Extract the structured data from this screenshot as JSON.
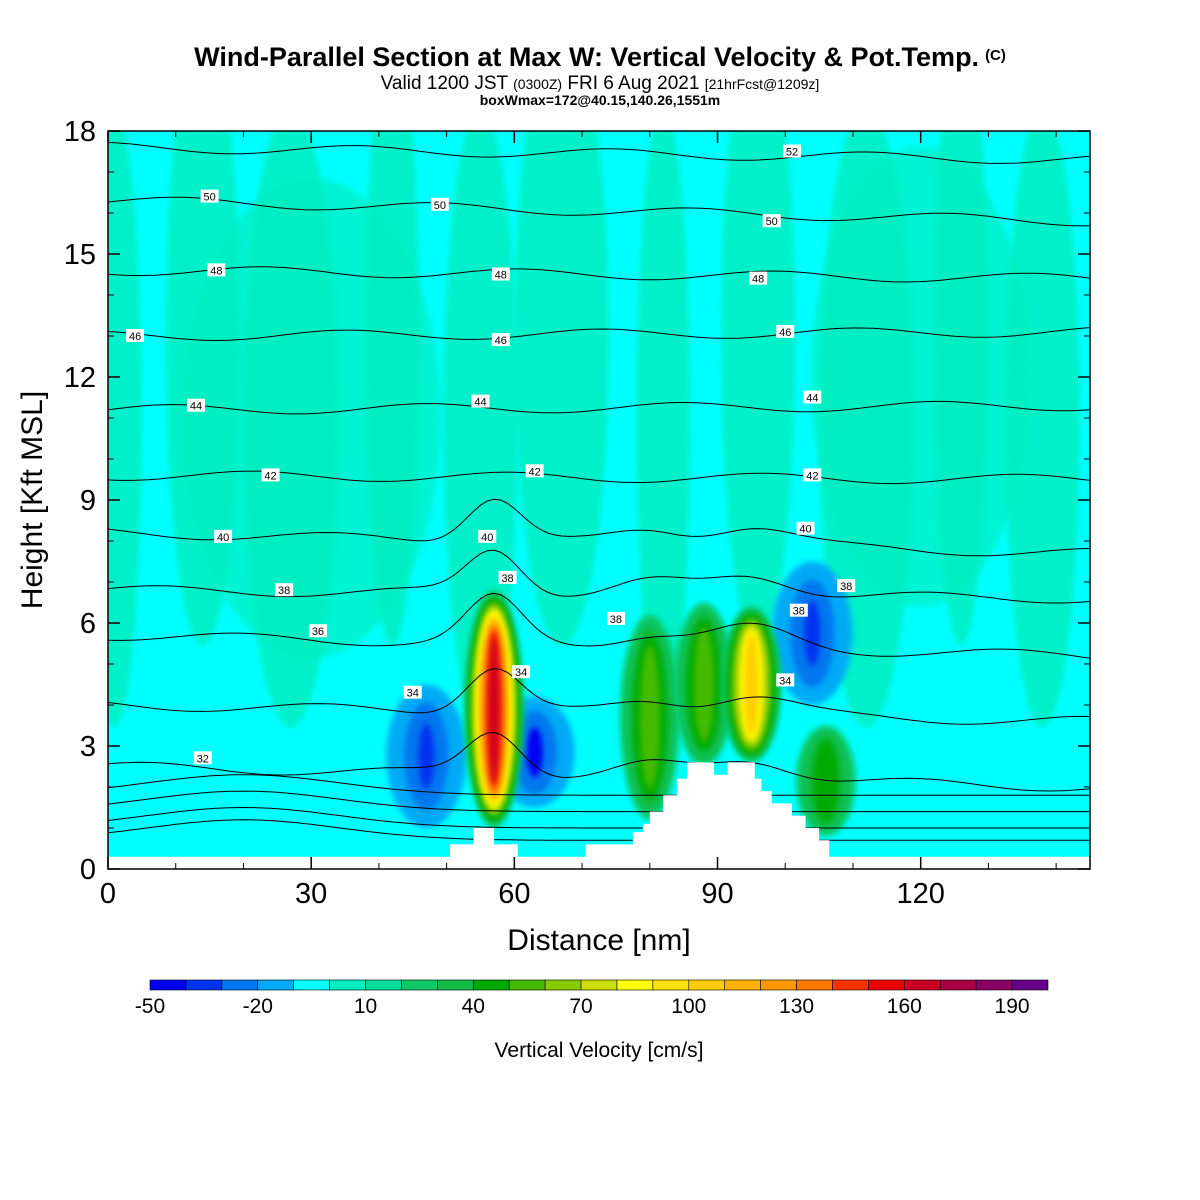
{
  "header": {
    "title": "Wind-Parallel Section at Max W: Vertical Velocity & Pot.Temp.",
    "title_mark": "(C)",
    "valid_prefix": "Valid 1200 JST",
    "valid_utc": "(0300Z)",
    "valid_date": "FRI 6 Aug 2021",
    "forecast": "[21hrFcst@1209z]",
    "box_info": "boxWmax=172@40.15,140.26,1551m"
  },
  "chart_data": {
    "type": "heatmap",
    "xlabel": "Distance [nm]",
    "ylabel": "Height [Kft MSL]",
    "xlim": [
      0,
      145
    ],
    "ylim": [
      0,
      18
    ],
    "xticks": [
      0,
      30,
      60,
      90,
      120
    ],
    "yticks": [
      0,
      3,
      6,
      9,
      12,
      15,
      18
    ],
    "background_color": "#00FFFF",
    "colorbar": {
      "label": "Vertical Velocity [cm/s]",
      "tick_labels": [
        "-50",
        "-20",
        "10",
        "40",
        "70",
        "100",
        "130",
        "160",
        "190"
      ],
      "tick_values": [
        -50,
        -20,
        10,
        40,
        70,
        100,
        130,
        160,
        190
      ],
      "levels": [
        -50,
        -40,
        -30,
        -20,
        -10,
        0,
        10,
        20,
        30,
        40,
        50,
        60,
        70,
        80,
        90,
        100,
        110,
        120,
        130,
        140,
        150,
        160,
        170,
        180,
        190,
        200
      ],
      "colors": [
        "#0000F5",
        "#0033F0",
        "#0077EE",
        "#00AAF5",
        "#00FFFF",
        "#00EEC0",
        "#00DD99",
        "#11C866",
        "#11BB44",
        "#00AA00",
        "#44BB00",
        "#88CC00",
        "#CCDD00",
        "#FFFF00",
        "#FFE000",
        "#FFCC00",
        "#FFB000",
        "#FF9900",
        "#FF7700",
        "#FF3300",
        "#EE0000",
        "#CC0022",
        "#AA0044",
        "#880066",
        "#660088"
      ]
    },
    "terrain": [
      [
        0,
        0.3
      ],
      [
        50.5,
        0.3
      ],
      [
        50.5,
        0.6
      ],
      [
        54,
        0.6
      ],
      [
        54,
        1.0
      ],
      [
        57,
        1.0
      ],
      [
        57,
        0.6
      ],
      [
        60.5,
        0.6
      ],
      [
        60.5,
        0.3
      ],
      [
        70.5,
        0.3
      ],
      [
        70.5,
        0.6
      ],
      [
        77.5,
        0.6
      ],
      [
        77.5,
        0.9
      ],
      [
        79,
        0.9
      ],
      [
        79,
        1.1
      ],
      [
        80,
        1.1
      ],
      [
        80,
        1.4
      ],
      [
        82,
        1.4
      ],
      [
        82,
        1.8
      ],
      [
        84,
        1.8
      ],
      [
        84,
        2.2
      ],
      [
        85.5,
        2.2
      ],
      [
        85.5,
        2.6
      ],
      [
        89.5,
        2.6
      ],
      [
        89.5,
        2.3
      ],
      [
        91.5,
        2.3
      ],
      [
        91.5,
        2.6
      ],
      [
        95.5,
        2.6
      ],
      [
        95.5,
        2.2
      ],
      [
        96.5,
        2.2
      ],
      [
        96.5,
        1.9
      ],
      [
        98,
        1.9
      ],
      [
        98,
        1.6
      ],
      [
        101,
        1.6
      ],
      [
        101,
        1.3
      ],
      [
        103,
        1.3
      ],
      [
        103,
        1.0
      ],
      [
        105,
        1.0
      ],
      [
        105,
        0.7
      ],
      [
        106.5,
        0.7
      ],
      [
        106.5,
        0.3
      ],
      [
        145,
        0.3
      ]
    ],
    "updrafts": [
      {
        "x": 57,
        "y_min": 1.0,
        "y_max": 6.8,
        "w_max": 172
      },
      {
        "x": 80,
        "y_min": 1.2,
        "y_max": 6.2,
        "w_max": 50
      },
      {
        "x": 88,
        "y_min": 2.5,
        "y_max": 6.5,
        "w_max": 55
      },
      {
        "x": 95,
        "y_min": 2.6,
        "y_max": 6.4,
        "w_max": 100
      },
      {
        "x": 106,
        "y_min": 0.8,
        "y_max": 3.5,
        "w_max": 40
      }
    ],
    "downdrafts": [
      {
        "x": 47,
        "y_min": 1.0,
        "y_max": 4.5,
        "w_min": -40
      },
      {
        "x": 63,
        "y_min": 1.5,
        "y_max": 4.2,
        "w_min": -45
      },
      {
        "x": 104,
        "y_min": 4.0,
        "y_max": 7.5,
        "w_min": -40
      }
    ],
    "theta_contours": [
      {
        "value": 32,
        "y_left": 2.5,
        "y_right": 2.0
      },
      {
        "value": 34,
        "y_left": 4.0,
        "y_right": 3.6
      },
      {
        "value": 36,
        "y_left": 5.7,
        "y_right": 5.2
      },
      {
        "value": 38,
        "y_left": 6.8,
        "y_right": 6.6
      },
      {
        "value": 40,
        "y_left": 8.2,
        "y_right": 7.7
      },
      {
        "value": 42,
        "y_left": 9.6,
        "y_right": 9.5
      },
      {
        "value": 44,
        "y_left": 11.2,
        "y_right": 11.3
      },
      {
        "value": 46,
        "y_left": 13.0,
        "y_right": 13.1
      },
      {
        "value": 48,
        "y_left": 14.6,
        "y_right": 14.4
      },
      {
        "value": 50,
        "y_left": 16.3,
        "y_right": 15.8
      },
      {
        "value": 52,
        "y_left": 17.6,
        "y_right": 17.3
      }
    ],
    "contour_labels": [
      {
        "text": "50",
        "x": 15,
        "y": 16.4
      },
      {
        "text": "50",
        "x": 49,
        "y": 16.2
      },
      {
        "text": "50",
        "x": 98,
        "y": 15.8
      },
      {
        "text": "52",
        "x": 101,
        "y": 17.5
      },
      {
        "text": "48",
        "x": 16,
        "y": 14.6
      },
      {
        "text": "48",
        "x": 58,
        "y": 14.5
      },
      {
        "text": "48",
        "x": 96,
        "y": 14.4
      },
      {
        "text": "46",
        "x": 4,
        "y": 13.0
      },
      {
        "text": "46",
        "x": 58,
        "y": 12.9
      },
      {
        "text": "46",
        "x": 100,
        "y": 13.1
      },
      {
        "text": "44",
        "x": 13,
        "y": 11.3
      },
      {
        "text": "44",
        "x": 55,
        "y": 11.4
      },
      {
        "text": "44",
        "x": 104,
        "y": 11.5
      },
      {
        "text": "42",
        "x": 24,
        "y": 9.6
      },
      {
        "text": "42",
        "x": 63,
        "y": 9.7
      },
      {
        "text": "42",
        "x": 104,
        "y": 9.6
      },
      {
        "text": "40",
        "x": 17,
        "y": 8.1
      },
      {
        "text": "40",
        "x": 56,
        "y": 8.1
      },
      {
        "text": "40",
        "x": 103,
        "y": 8.3
      },
      {
        "text": "38",
        "x": 26,
        "y": 6.8
      },
      {
        "text": "38",
        "x": 59,
        "y": 7.1
      },
      {
        "text": "38",
        "x": 75,
        "y": 6.1
      },
      {
        "text": "38",
        "x": 102,
        "y": 6.3
      },
      {
        "text": "38",
        "x": 109,
        "y": 6.9
      },
      {
        "text": "36",
        "x": 31,
        "y": 5.8
      },
      {
        "text": "34",
        "x": 45,
        "y": 4.3
      },
      {
        "text": "34",
        "x": 61,
        "y": 4.8
      },
      {
        "text": "34",
        "x": 100,
        "y": 4.6
      },
      {
        "text": "32",
        "x": 14,
        "y": 2.7
      }
    ]
  }
}
